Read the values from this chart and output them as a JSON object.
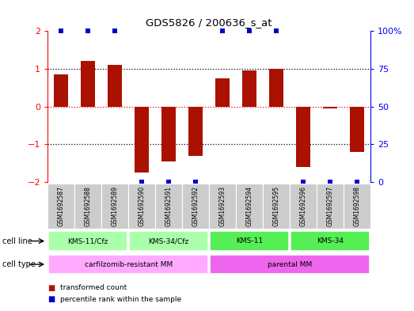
{
  "title": "GDS5826 / 200636_s_at",
  "samples": [
    "GSM1692587",
    "GSM1692588",
    "GSM1692589",
    "GSM1692590",
    "GSM1692591",
    "GSM1692592",
    "GSM1692593",
    "GSM1692594",
    "GSM1692595",
    "GSM1692596",
    "GSM1692597",
    "GSM1692598"
  ],
  "transformed_counts": [
    0.85,
    1.2,
    1.1,
    -1.75,
    -1.45,
    -1.3,
    0.75,
    0.95,
    1.0,
    -1.6,
    -0.05,
    -1.2
  ],
  "percentile_ranks": [
    95,
    95,
    95,
    5,
    5,
    5,
    95,
    95,
    95,
    5,
    5,
    5
  ],
  "cell_lines": [
    {
      "label": "KMS-11/Cfz",
      "start": 0,
      "end": 3,
      "color": "#aaffaa"
    },
    {
      "label": "KMS-34/Cfz",
      "start": 3,
      "end": 6,
      "color": "#aaffaa"
    },
    {
      "label": "KMS-11",
      "start": 6,
      "end": 9,
      "color": "#55ee55"
    },
    {
      "label": "KMS-34",
      "start": 9,
      "end": 12,
      "color": "#55ee55"
    }
  ],
  "cell_types": [
    {
      "label": "carfilzomib-resistant MM",
      "start": 0,
      "end": 6,
      "color": "#ffaaff"
    },
    {
      "label": "parental MM",
      "start": 6,
      "end": 12,
      "color": "#ee66ee"
    }
  ],
  "bar_color": "#aa1100",
  "dot_color": "#0000cc",
  "sample_bg_color": "#cccccc",
  "ylim": [
    -2,
    2
  ],
  "yticks": [
    -2,
    -1,
    0,
    1,
    2
  ],
  "y2ticks": [
    0,
    25,
    50,
    75,
    100
  ],
  "y2tick_labels": [
    "0",
    "25",
    "50",
    "75",
    "100%"
  ],
  "legend_items": [
    {
      "label": "transformed count",
      "color": "#aa1100"
    },
    {
      "label": "percentile rank within the sample",
      "color": "#0000cc"
    }
  ]
}
